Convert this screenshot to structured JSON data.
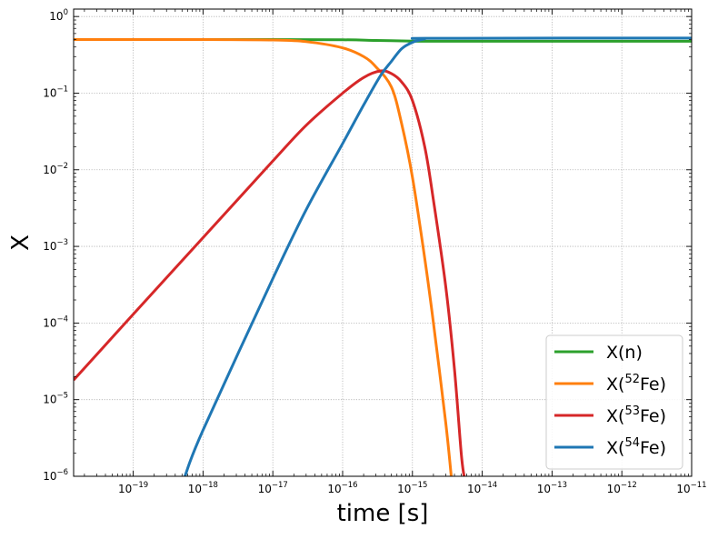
{
  "chart_data": {
    "type": "line",
    "xlabel": "time [s]",
    "ylabel": "X",
    "xscale": "log",
    "yscale": "log",
    "xlim": [
      1.4e-20,
      1e-11
    ],
    "ylim": [
      1e-06,
      1.25
    ],
    "grid": true,
    "legend_position": "lower right",
    "x_ticks": [
      {
        "base": "10",
        "exp": "−19"
      },
      {
        "base": "10",
        "exp": "−18"
      },
      {
        "base": "10",
        "exp": "−17"
      },
      {
        "base": "10",
        "exp": "−16"
      },
      {
        "base": "10",
        "exp": "−15"
      },
      {
        "base": "10",
        "exp": "−14"
      },
      {
        "base": "10",
        "exp": "−13"
      },
      {
        "base": "10",
        "exp": "−12"
      },
      {
        "base": "10",
        "exp": "−11"
      }
    ],
    "y_ticks": [
      {
        "base": "10",
        "exp": "−6"
      },
      {
        "base": "10",
        "exp": "−5"
      },
      {
        "base": "10",
        "exp": "−4"
      },
      {
        "base": "10",
        "exp": "−3"
      },
      {
        "base": "10",
        "exp": "−2"
      },
      {
        "base": "10",
        "exp": "−1"
      },
      {
        "base": "10",
        "exp": "0"
      }
    ],
    "series": [
      {
        "name": "X(n)",
        "legend_main": "X(n)",
        "legend_sup": "",
        "legend_tail": "",
        "color": "#2ca02c",
        "points": [
          [
            1.4e-20,
            0.5
          ],
          [
            1e-18,
            0.5
          ],
          [
            1e-17,
            0.5
          ],
          [
            1e-16,
            0.497
          ],
          [
            3e-16,
            0.488
          ],
          [
            1e-15,
            0.478
          ],
          [
            2e-15,
            0.476
          ],
          [
            1e-11,
            0.476
          ]
        ]
      },
      {
        "name": "X(52Fe)",
        "legend_main": "X(",
        "legend_sup": "52",
        "legend_tail": "Fe)",
        "color": "#ff7f0e",
        "points": [
          [
            1.4e-20,
            0.5
          ],
          [
            1e-18,
            0.5
          ],
          [
            1e-17,
            0.493
          ],
          [
            3e-17,
            0.47
          ],
          [
            1e-16,
            0.39
          ],
          [
            2e-16,
            0.3
          ],
          [
            3e-16,
            0.22
          ],
          [
            5e-16,
            0.12
          ],
          [
            7e-16,
            0.04
          ],
          [
            1e-15,
            0.008
          ],
          [
            1.5e-15,
            0.0007
          ],
          [
            2e-15,
            0.0001
          ],
          [
            3e-15,
            5e-06
          ],
          [
            3.6e-15,
            1e-06
          ]
        ]
      },
      {
        "name": "X(53Fe)",
        "legend_main": "X(",
        "legend_sup": "53",
        "legend_tail": "Fe)",
        "color": "#d62728",
        "points": [
          [
            1.4e-20,
            1.8e-05
          ],
          [
            1e-19,
            0.00013
          ],
          [
            1e-18,
            0.0013
          ],
          [
            1e-17,
            0.013
          ],
          [
            3e-17,
            0.038
          ],
          [
            1e-16,
            0.1
          ],
          [
            2e-16,
            0.16
          ],
          [
            3.5e-16,
            0.195
          ],
          [
            5e-16,
            0.18
          ],
          [
            7e-16,
            0.14
          ],
          [
            1e-15,
            0.08
          ],
          [
            1.5e-15,
            0.02
          ],
          [
            2e-15,
            0.004
          ],
          [
            3e-15,
            0.0003
          ],
          [
            4e-15,
            2.5e-05
          ],
          [
            5e-15,
            2e-06
          ],
          [
            5.5e-15,
            1e-06
          ]
        ]
      },
      {
        "name": "X(54Fe)",
        "legend_main": "X(",
        "legend_sup": "54",
        "legend_tail": "Fe)",
        "color": "#1f77b4",
        "points": [
          [
            5.5e-19,
            1e-06
          ],
          [
            1e-18,
            4e-06
          ],
          [
            1e-17,
            0.00038
          ],
          [
            3e-17,
            0.003
          ],
          [
            1e-16,
            0.022
          ],
          [
            2e-16,
            0.07
          ],
          [
            3.5e-16,
            0.17
          ],
          [
            5e-16,
            0.26
          ],
          [
            7e-16,
            0.38
          ],
          [
            1e-15,
            0.46
          ],
          [
            1.5e-15,
            0.51
          ],
          [
            2e-15,
            0.52
          ],
          [
            1e-11,
            0.524
          ]
        ]
      }
    ]
  }
}
